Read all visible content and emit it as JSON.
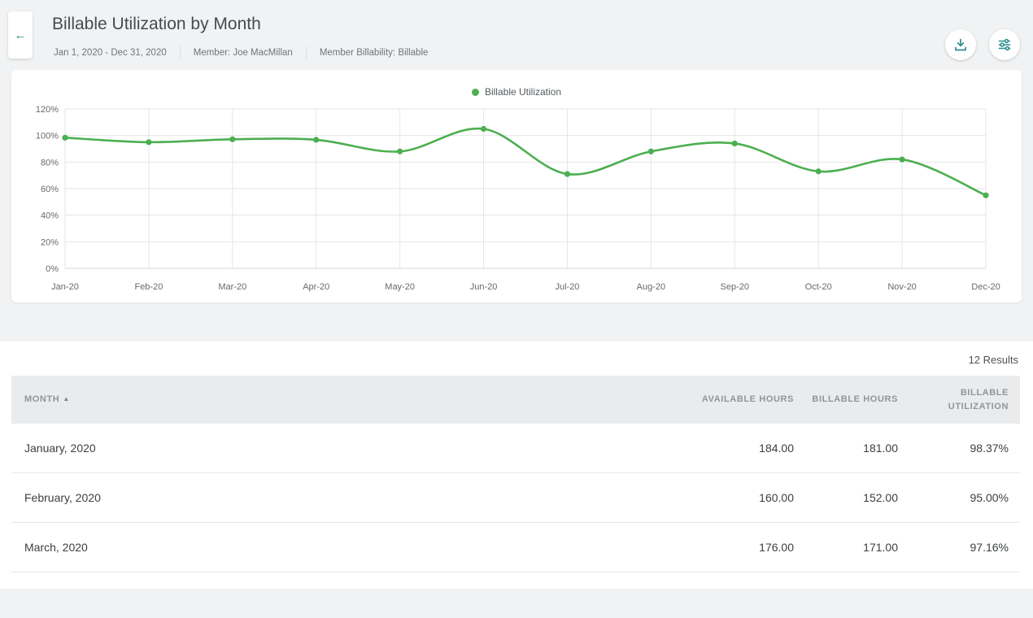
{
  "header": {
    "title": "Billable Utilization by Month",
    "back_icon": "←",
    "filters": [
      "Jan 1, 2020 - Dec 31, 2020",
      "Member: Joe MacMillan",
      "Member Billability: Billable"
    ]
  },
  "chart_data": {
    "type": "line",
    "title": "",
    "legend": [
      "Billable Utilization"
    ],
    "legend_position": "top",
    "x": [
      "Jan-20",
      "Feb-20",
      "Mar-20",
      "Apr-20",
      "May-20",
      "Jun-20",
      "Jul-20",
      "Aug-20",
      "Sep-20",
      "Oct-20",
      "Nov-20",
      "Dec-20"
    ],
    "series": [
      {
        "name": "Billable Utilization",
        "values": [
          98.37,
          95.0,
          97.16,
          96.8,
          88.0,
          105.0,
          71.0,
          88.0,
          94.0,
          73.0,
          82.0,
          55.0
        ]
      }
    ],
    "ylim": [
      0,
      120
    ],
    "yticks": [
      "0%",
      "20%",
      "40%",
      "60%",
      "80%",
      "100%",
      "120%"
    ],
    "grid": true,
    "color": "#4caf50"
  },
  "results": {
    "count": "12 Results"
  },
  "table": {
    "columns": [
      "Month",
      "Available Hours",
      "Billable Hours",
      "Billable Utilization"
    ],
    "sort_icon": "▲",
    "rows": [
      [
        "January, 2020",
        "184.00",
        "181.00",
        "98.37%"
      ],
      [
        "February, 2020",
        "160.00",
        "152.00",
        "95.00%"
      ],
      [
        "March, 2020",
        "176.00",
        "171.00",
        "97.16%"
      ]
    ]
  }
}
